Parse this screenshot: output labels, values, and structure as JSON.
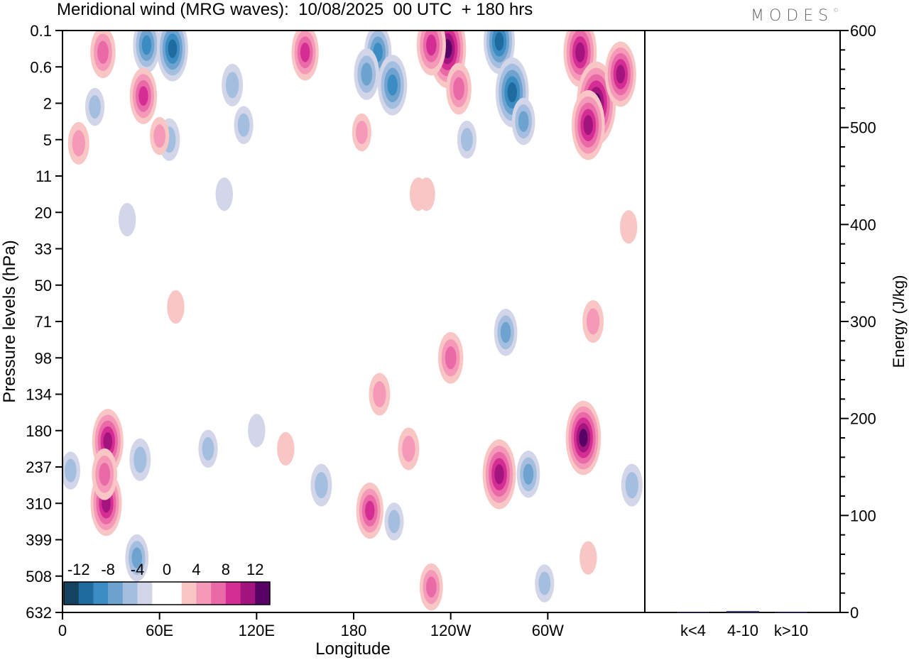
{
  "title": "Meridional wind (MRG waves):  10/08/2025  00 UTC  + 180 hrs",
  "logo": "MODES",
  "chart_data": [
    {
      "type": "contour",
      "title": "Meridional wind (MRG waves):  10/08/2025  00 UTC  + 180 hrs",
      "xlabel": "Longitude",
      "ylabel": "Pressure levels (hPa)",
      "x_ticks": [
        {
          "lon": 0,
          "label": "0"
        },
        {
          "lon": 60,
          "label": "60E"
        },
        {
          "lon": 120,
          "label": "120E"
        },
        {
          "lon": 180,
          "label": "180"
        },
        {
          "lon": 240,
          "label": "120W"
        },
        {
          "lon": 300,
          "label": "60W"
        }
      ],
      "xlim": [
        0,
        360
      ],
      "y_levels": [
        "0.1",
        "0.6",
        "2",
        "5",
        "11",
        "20",
        "33",
        "50",
        "71",
        "98",
        "134",
        "180",
        "237",
        "310",
        "399",
        "508",
        "632"
      ],
      "colorbar": {
        "labels": [
          "-12",
          "-8",
          "-4",
          "0",
          "4",
          "8",
          "12"
        ],
        "colors": [
          "#14435f",
          "#1f6a9e",
          "#3a8cc3",
          "#6fa3cf",
          "#a4bedf",
          "#d3d6e8",
          "#ffffff",
          "#ffffff",
          "#f9c6c6",
          "#f599b8",
          "#ea6aa8",
          "#d42d93",
          "#a3147f",
          "#560364"
        ]
      },
      "blobs": [
        {
          "lon": 28,
          "lev": 11.3,
          "value": 10
        },
        {
          "lon": 27,
          "lev": 13.0,
          "value": 10
        },
        {
          "lon": 26,
          "lev": 12.2,
          "value": 7
        },
        {
          "lon": 48,
          "lev": 11.8,
          "value": -5
        },
        {
          "lon": 46,
          "lev": 14.5,
          "value": -6
        },
        {
          "lon": 5,
          "lev": 12.1,
          "value": -4
        },
        {
          "lon": 90,
          "lev": 11.5,
          "value": -4
        },
        {
          "lon": 120,
          "lev": 11.0,
          "value": -3
        },
        {
          "lon": 138,
          "lev": 11.5,
          "value": 3
        },
        {
          "lon": 160,
          "lev": 12.5,
          "value": -5
        },
        {
          "lon": 190,
          "lev": 13.2,
          "value": 8
        },
        {
          "lon": 196,
          "lev": 10.0,
          "value": 5
        },
        {
          "lon": 205,
          "lev": 13.5,
          "value": -4
        },
        {
          "lon": 214,
          "lev": 11.5,
          "value": 5
        },
        {
          "lon": 228,
          "lev": 15.3,
          "value": 6
        },
        {
          "lon": 240,
          "lev": 9.0,
          "value": 7
        },
        {
          "lon": 270,
          "lev": 12.2,
          "value": 11
        },
        {
          "lon": 288,
          "lev": 12.2,
          "value": -6
        },
        {
          "lon": 322,
          "lev": 11.2,
          "value": 12
        },
        {
          "lon": 352,
          "lev": 12.5,
          "value": -5
        },
        {
          "lon": 298,
          "lev": 15.2,
          "value": -4
        },
        {
          "lon": 325,
          "lev": 14.5,
          "value": 3
        },
        {
          "lon": 274,
          "lev": 8.3,
          "value": -6
        },
        {
          "lon": 328,
          "lev": 8.0,
          "value": 5
        },
        {
          "lon": 25,
          "lev": 0.6,
          "value": 7
        },
        {
          "lon": 52,
          "lev": 0.4,
          "value": -8
        },
        {
          "lon": 68,
          "lev": 0.5,
          "value": -10
        },
        {
          "lon": 50,
          "lev": 1.8,
          "value": 8
        },
        {
          "lon": 20,
          "lev": 2.1,
          "value": -4
        },
        {
          "lon": 105,
          "lev": 1.5,
          "value": -5
        },
        {
          "lon": 112,
          "lev": 2.6,
          "value": -4
        },
        {
          "lon": 150,
          "lev": 0.6,
          "value": 8
        },
        {
          "lon": 195,
          "lev": 0.6,
          "value": -8
        },
        {
          "lon": 204,
          "lev": 1.5,
          "value": -9
        },
        {
          "lon": 188,
          "lev": 1.2,
          "value": -7
        },
        {
          "lon": 238,
          "lev": 0.5,
          "value": 13
        },
        {
          "lon": 228,
          "lev": 0.4,
          "value": 9
        },
        {
          "lon": 245,
          "lev": 1.6,
          "value": 7
        },
        {
          "lon": 270,
          "lev": 0.3,
          "value": -10
        },
        {
          "lon": 278,
          "lev": 1.7,
          "value": -11
        },
        {
          "lon": 285,
          "lev": 2.5,
          "value": -6
        },
        {
          "lon": 320,
          "lev": 0.6,
          "value": 11
        },
        {
          "lon": 330,
          "lev": 2.0,
          "value": 14
        },
        {
          "lon": 345,
          "lev": 1.2,
          "value": 10
        },
        {
          "lon": 325,
          "lev": 2.6,
          "value": 11
        },
        {
          "lon": 185,
          "lev": 2.8,
          "value": 4
        },
        {
          "lon": 220,
          "lev": 4.5,
          "value": 3
        },
        {
          "lon": 225,
          "lev": 4.5,
          "value": 3
        },
        {
          "lon": 10,
          "lev": 3.1,
          "value": 5
        },
        {
          "lon": 66,
          "lev": 3.0,
          "value": -5
        },
        {
          "lon": 60,
          "lev": 2.9,
          "value": 4
        },
        {
          "lon": 100,
          "lev": 4.5,
          "value": -3
        },
        {
          "lon": 250,
          "lev": 3.0,
          "value": -4
        },
        {
          "lon": 70,
          "lev": 7.6,
          "value": 3
        },
        {
          "lon": 350,
          "lev": 5.4,
          "value": 3
        },
        {
          "lon": 40,
          "lev": 5.2,
          "value": -3
        }
      ]
    },
    {
      "type": "bar",
      "categories": [
        "k<4",
        "4-10",
        "k>10"
      ],
      "values": [
        0.4,
        1.5,
        0.3
      ],
      "ylabel": "Energy (J/kg)",
      "ylim": [
        0,
        600
      ],
      "y_ticks": [
        0,
        100,
        200,
        300,
        400,
        500,
        600
      ]
    }
  ]
}
